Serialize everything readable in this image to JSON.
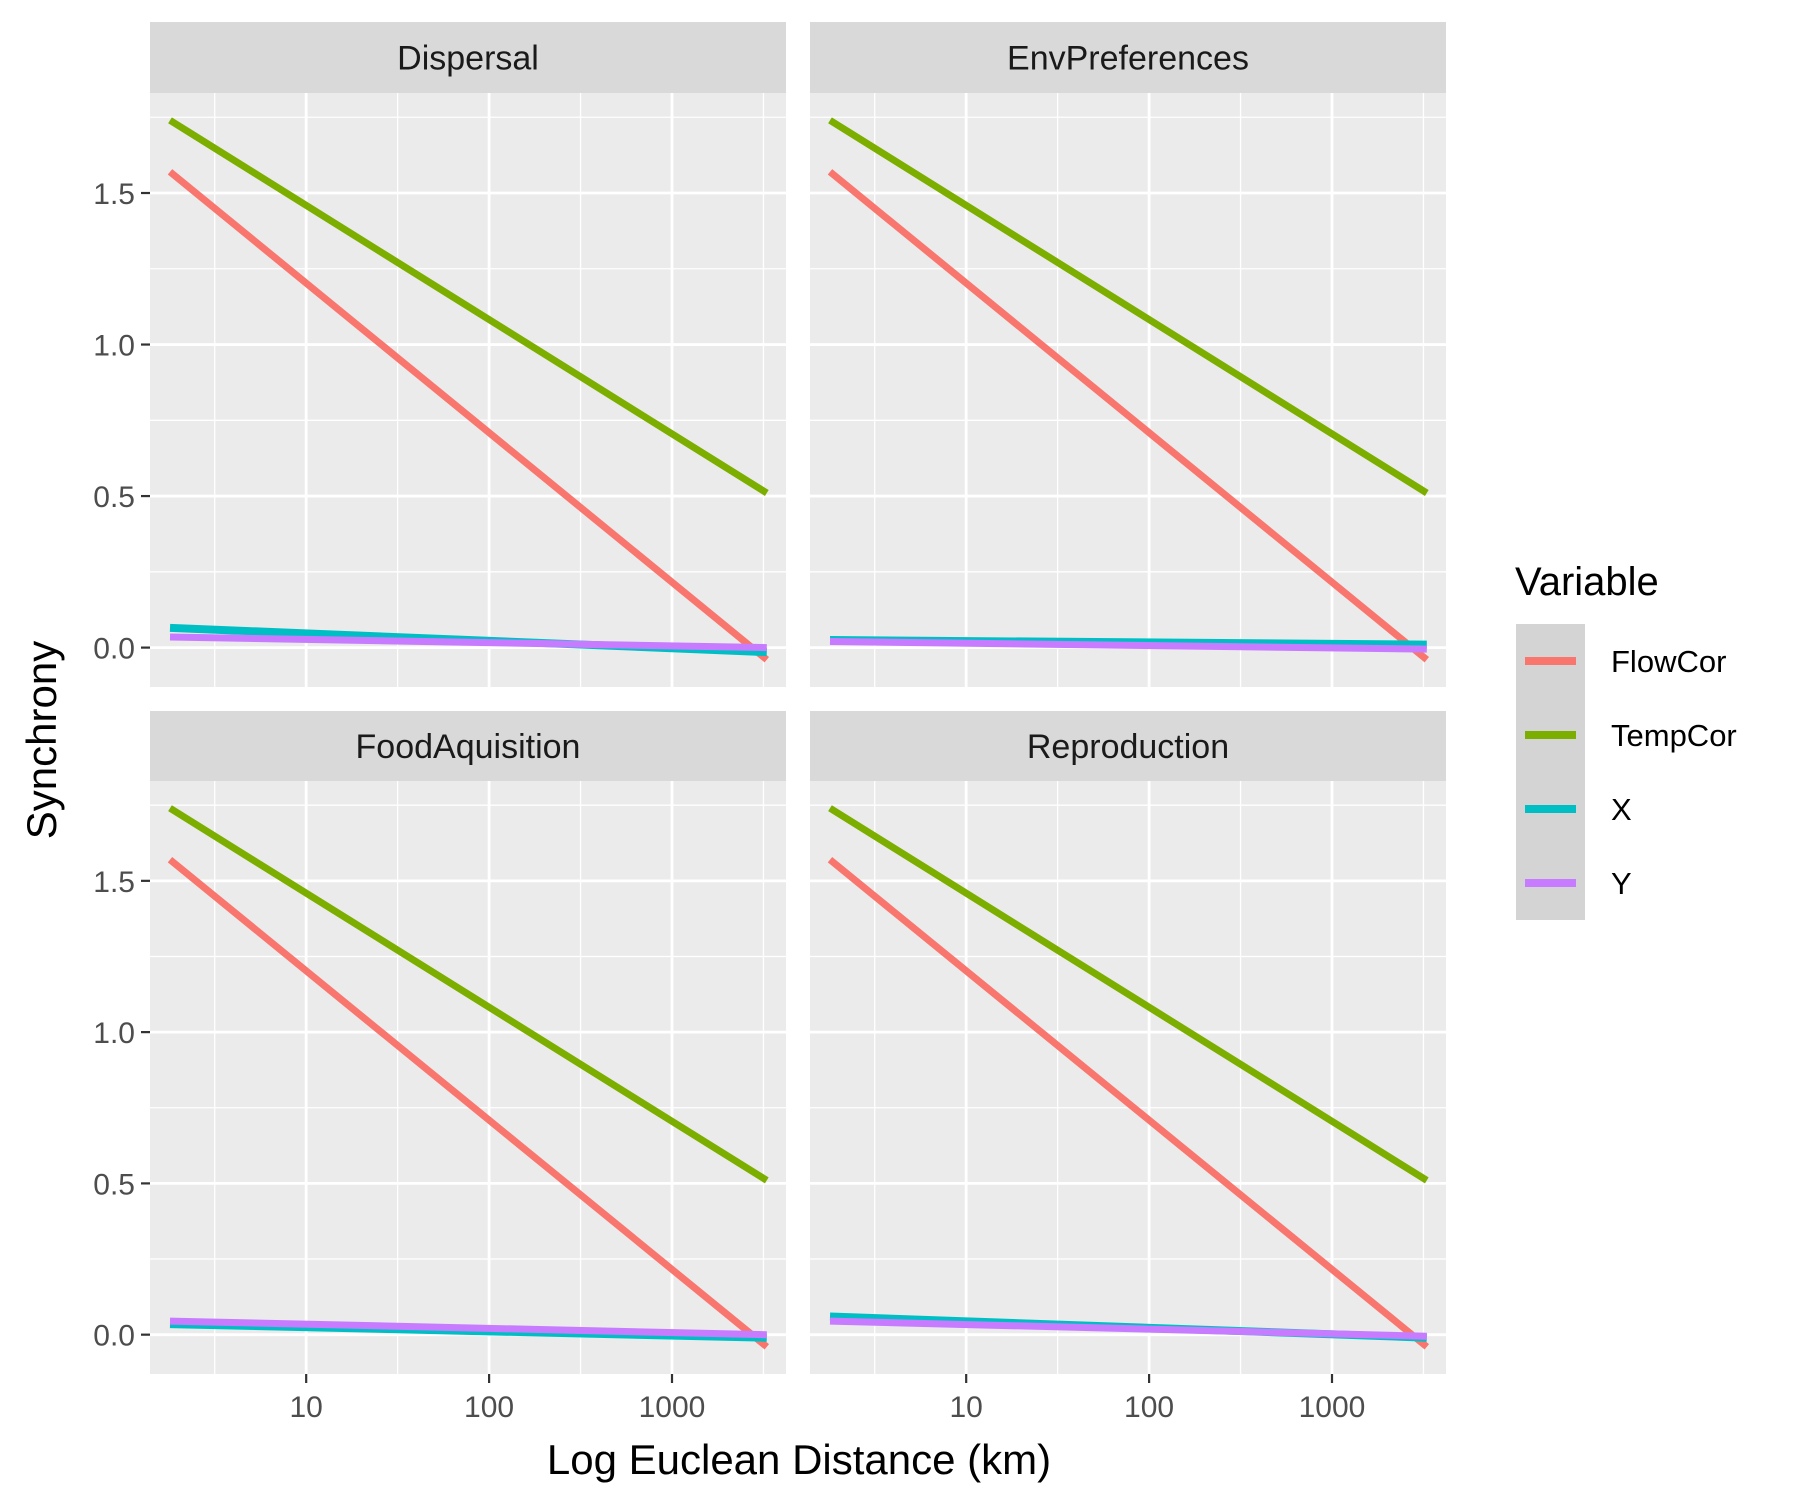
{
  "chart_data": {
    "type": "line",
    "xlabel": "Log Euclean Distance (km)",
    "ylabel": "Synchrony",
    "x_scale": "log10",
    "xlim": [
      1.4,
      4200
    ],
    "ylim": [
      -0.13,
      1.83
    ],
    "x_ticks": [
      {
        "value": 10,
        "label": "10"
      },
      {
        "value": 100,
        "label": "100"
      },
      {
        "value": 1000,
        "label": "1000"
      }
    ],
    "y_ticks": [
      {
        "value": 0.0,
        "label": "0.0"
      },
      {
        "value": 0.5,
        "label": "0.5"
      },
      {
        "value": 1.0,
        "label": "1.0"
      },
      {
        "value": 1.5,
        "label": "1.5"
      }
    ],
    "grid": true,
    "legend": {
      "title": "Variable",
      "position": "right",
      "items": [
        {
          "name": "FlowCor",
          "color": "#F8766D"
        },
        {
          "name": "TempCor",
          "color": "#7CAE00"
        },
        {
          "name": "X",
          "color": "#00BFC4"
        },
        {
          "name": "Y",
          "color": "#C77CFF"
        }
      ]
    },
    "panels": [
      {
        "title": "Dispersal",
        "series": [
          {
            "name": "FlowCor",
            "x": [
              1.8,
              3300
            ],
            "y": [
              1.57,
              -0.04
            ]
          },
          {
            "name": "TempCor",
            "x": [
              1.8,
              3300
            ],
            "y": [
              1.74,
              0.51
            ]
          },
          {
            "name": "X",
            "x": [
              1.8,
              3300
            ],
            "y": [
              0.065,
              -0.015
            ]
          },
          {
            "name": "Y",
            "x": [
              1.8,
              3300
            ],
            "y": [
              0.035,
              0.0
            ]
          }
        ]
      },
      {
        "title": "EnvPreferences",
        "series": [
          {
            "name": "FlowCor",
            "x": [
              1.8,
              3300
            ],
            "y": [
              1.57,
              -0.04
            ]
          },
          {
            "name": "TempCor",
            "x": [
              1.8,
              3300
            ],
            "y": [
              1.74,
              0.51
            ]
          },
          {
            "name": "X",
            "x": [
              1.8,
              3300
            ],
            "y": [
              0.025,
              0.01
            ]
          },
          {
            "name": "Y",
            "x": [
              1.8,
              3300
            ],
            "y": [
              0.02,
              -0.005
            ]
          }
        ]
      },
      {
        "title": "FoodAquisition",
        "series": [
          {
            "name": "FlowCor",
            "x": [
              1.8,
              3300
            ],
            "y": [
              1.57,
              -0.04
            ]
          },
          {
            "name": "TempCor",
            "x": [
              1.8,
              3300
            ],
            "y": [
              1.74,
              0.51
            ]
          },
          {
            "name": "X",
            "x": [
              1.8,
              3300
            ],
            "y": [
              0.035,
              -0.01
            ]
          },
          {
            "name": "Y",
            "x": [
              1.8,
              3300
            ],
            "y": [
              0.045,
              0.0
            ]
          }
        ]
      },
      {
        "title": "Reproduction",
        "series": [
          {
            "name": "FlowCor",
            "x": [
              1.8,
              3300
            ],
            "y": [
              1.57,
              -0.04
            ]
          },
          {
            "name": "TempCor",
            "x": [
              1.8,
              3300
            ],
            "y": [
              1.74,
              0.51
            ]
          },
          {
            "name": "X",
            "x": [
              1.8,
              3300
            ],
            "y": [
              0.06,
              -0.01
            ]
          },
          {
            "name": "Y",
            "x": [
              1.8,
              3300
            ],
            "y": [
              0.045,
              -0.005
            ]
          }
        ]
      }
    ]
  }
}
